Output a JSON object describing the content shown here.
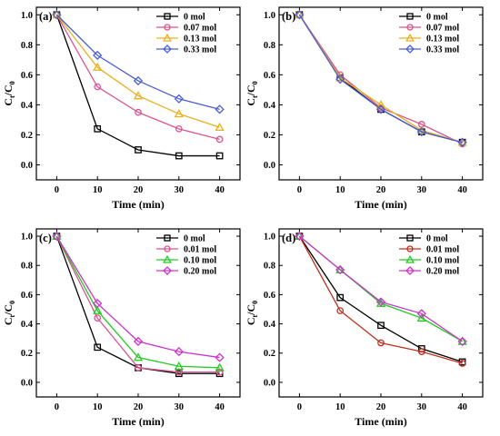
{
  "chart_data": [
    {
      "type": "line",
      "panel_label": "(a)",
      "xlabel": "Time (min)",
      "ylabel": "C_t/C_0",
      "xlim": [
        -5,
        45
      ],
      "ylim": [
        -0.1,
        1.05
      ],
      "xticks": [
        0,
        10,
        20,
        30,
        40
      ],
      "yticks": [
        0.0,
        0.2,
        0.4,
        0.6,
        0.8,
        1.0
      ],
      "legend_position": "top-right",
      "x": [
        0,
        10,
        20,
        30,
        40
      ],
      "series": [
        {
          "name": "0 mol",
          "color": "#000000",
          "marker": "square",
          "values": [
            1.0,
            0.24,
            0.1,
            0.06,
            0.06
          ]
        },
        {
          "name": "0.07 mol",
          "color": "#d9558f",
          "marker": "circle",
          "values": [
            1.0,
            0.52,
            0.35,
            0.24,
            0.17
          ]
        },
        {
          "name": "0.13 mol",
          "color": "#e8b020",
          "marker": "triangle",
          "values": [
            1.0,
            0.65,
            0.46,
            0.34,
            0.25
          ]
        },
        {
          "name": "0.33 mol",
          "color": "#4a5fd0",
          "marker": "diamond",
          "values": [
            1.0,
            0.73,
            0.56,
            0.44,
            0.37
          ]
        }
      ]
    },
    {
      "type": "line",
      "panel_label": "(b)",
      "xlabel": "Time (min)",
      "ylabel": "C_t/C_0",
      "xlim": [
        -5,
        45
      ],
      "ylim": [
        -0.1,
        1.05
      ],
      "xticks": [
        0,
        10,
        20,
        30,
        40
      ],
      "yticks": [
        0.0,
        0.2,
        0.4,
        0.6,
        0.8,
        1.0
      ],
      "legend_position": "top-right",
      "x": [
        0,
        10,
        20,
        30,
        40
      ],
      "series": [
        {
          "name": "0 mol",
          "color": "#000000",
          "marker": "square",
          "values": [
            1.0,
            0.58,
            0.37,
            0.22,
            0.15
          ]
        },
        {
          "name": "0.07 mol",
          "color": "#d9558f",
          "marker": "circle",
          "values": [
            1.0,
            0.6,
            0.38,
            0.27,
            0.14
          ]
        },
        {
          "name": "0.13 mol",
          "color": "#e8b020",
          "marker": "triangle",
          "values": [
            1.0,
            0.58,
            0.4,
            0.23,
            0.15
          ]
        },
        {
          "name": "0.33 mol",
          "color": "#4a5fd0",
          "marker": "diamond",
          "values": [
            1.0,
            0.57,
            0.37,
            0.22,
            0.15
          ]
        }
      ]
    },
    {
      "type": "line",
      "panel_label": "(c)",
      "xlabel": "Time (min)",
      "ylabel": "C_t/C_0",
      "xlim": [
        -5,
        45
      ],
      "ylim": [
        -0.1,
        1.05
      ],
      "xticks": [
        0,
        10,
        20,
        30,
        40
      ],
      "yticks": [
        0.0,
        0.2,
        0.4,
        0.6,
        0.8,
        1.0
      ],
      "legend_position": "top-right",
      "x": [
        0,
        10,
        20,
        30,
        40
      ],
      "series": [
        {
          "name": "0 mol",
          "color": "#000000",
          "marker": "square",
          "values": [
            1.0,
            0.24,
            0.1,
            0.06,
            0.06
          ]
        },
        {
          "name": "0.01 mol",
          "color": "#d9558f",
          "marker": "circle",
          "values": [
            1.0,
            0.44,
            0.1,
            0.07,
            0.07
          ]
        },
        {
          "name": "0.10 mol",
          "color": "#22cc22",
          "marker": "triangle",
          "values": [
            1.0,
            0.49,
            0.17,
            0.11,
            0.1
          ]
        },
        {
          "name": "0.20 mol",
          "color": "#cc33cc",
          "marker": "diamond",
          "values": [
            1.0,
            0.54,
            0.28,
            0.21,
            0.17
          ]
        }
      ]
    },
    {
      "type": "line",
      "panel_label": "(d)",
      "xlabel": "Time (min)",
      "ylabel": "C_t/C_0",
      "xlim": [
        -5,
        45
      ],
      "ylim": [
        -0.1,
        1.05
      ],
      "xticks": [
        0,
        10,
        20,
        30,
        40
      ],
      "yticks": [
        0.0,
        0.2,
        0.4,
        0.6,
        0.8,
        1.0
      ],
      "legend_position": "top-right",
      "x": [
        0,
        10,
        20,
        30,
        40
      ],
      "series": [
        {
          "name": "0 mol",
          "color": "#000000",
          "marker": "square",
          "values": [
            1.0,
            0.58,
            0.39,
            0.23,
            0.14
          ]
        },
        {
          "name": "0.01 mol",
          "color": "#c0301e",
          "marker": "circle",
          "values": [
            1.0,
            0.49,
            0.27,
            0.21,
            0.13
          ]
        },
        {
          "name": "0.10 mol",
          "color": "#22cc22",
          "marker": "triangle",
          "values": [
            1.0,
            0.77,
            0.54,
            0.44,
            0.28
          ]
        },
        {
          "name": "0.20 mol",
          "color": "#cc33cc",
          "marker": "diamond",
          "values": [
            1.0,
            0.77,
            0.55,
            0.47,
            0.28
          ]
        }
      ]
    }
  ]
}
